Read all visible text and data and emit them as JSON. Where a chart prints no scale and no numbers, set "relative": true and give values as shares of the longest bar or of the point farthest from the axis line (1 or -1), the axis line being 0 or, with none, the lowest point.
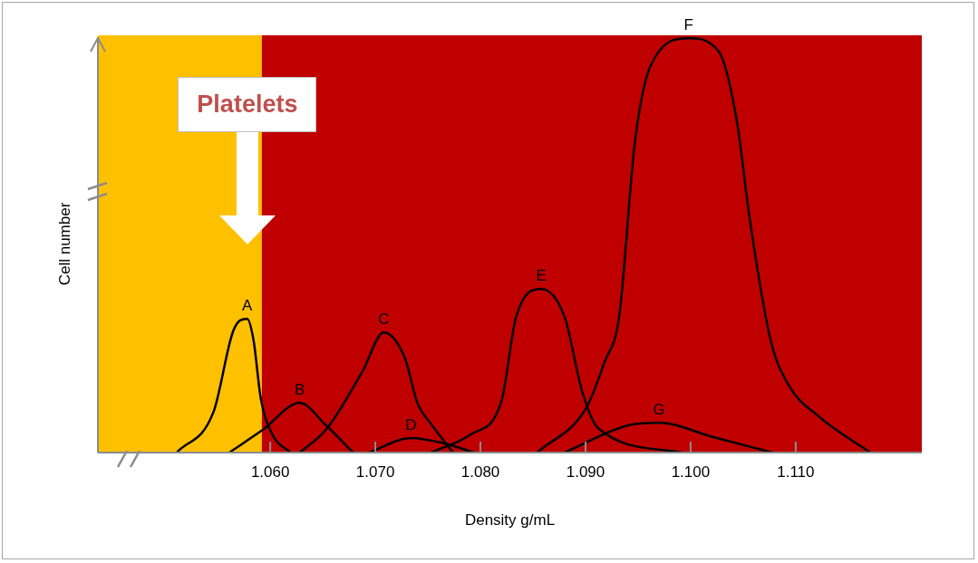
{
  "chart_data": {
    "type": "line",
    "relative": true,
    "xlabel": "Density g/mL",
    "ylabel": "Cell number",
    "xlim": [
      1.0436,
      1.122
    ],
    "xticks": [
      {
        "value": 1.06,
        "label": "1.060"
      },
      {
        "value": 1.07,
        "label": "1.070"
      },
      {
        "value": 1.08,
        "label": "1.080"
      },
      {
        "value": 1.09,
        "label": "1.090"
      },
      {
        "value": 1.1,
        "label": "1.100"
      },
      {
        "value": 1.11,
        "label": "1.110"
      }
    ],
    "bands": [
      {
        "axis": "x",
        "from": 1.0436,
        "to": 1.0592,
        "label": "Platelets",
        "color": "#ffc000"
      },
      {
        "axis": "x",
        "from": 1.0592,
        "to": 1.122,
        "color": "#c00000"
      }
    ],
    "marker": "none",
    "line_style": "solid",
    "legend": false,
    "series": [
      {
        "name": "A",
        "color": "#000000",
        "x": [
          1.0511,
          1.0546,
          1.0565,
          1.0578,
          1.0584,
          1.0591,
          1.0602,
          1.0619
        ],
        "values": [
          0,
          0.098,
          0.295,
          0.323,
          0.273,
          0.131,
          0.044,
          0
        ]
      },
      {
        "name": "B",
        "color": "#000000",
        "x": [
          1.0561,
          1.0593,
          1.0628,
          1.0653,
          1.0679
        ],
        "values": [
          0,
          0.055,
          0.12,
          0.066,
          0
        ]
      },
      {
        "name": "C",
        "color": "#000000",
        "x": [
          1.0628,
          1.0653,
          1.0688,
          1.0708,
          1.0728,
          1.074,
          1.0754,
          1.0774
        ],
        "values": [
          0,
          0.055,
          0.197,
          0.29,
          0.229,
          0.12,
          0.066,
          0
        ]
      },
      {
        "name": "D",
        "color": "#000000",
        "x": [
          1.0694,
          1.0734,
          1.0766,
          1.0794
        ],
        "values": [
          0,
          0.035,
          0.022,
          0
        ]
      },
      {
        "name": "E",
        "color": "#000000",
        "x": [
          1.0753,
          1.0791,
          1.082,
          1.0834,
          1.0858,
          1.088,
          1.0897,
          1.0912,
          1.0992
        ],
        "values": [
          0,
          0.044,
          0.124,
          0.328,
          0.395,
          0.328,
          0.146,
          0.059,
          0
        ]
      },
      {
        "name": "F",
        "color": "#000000",
        "x": [
          1.0854,
          1.0901,
          1.0918,
          1.0932,
          1.0947,
          1.0962,
          1.0998,
          1.1027,
          1.1044,
          1.1056,
          1.1076,
          1.1093,
          1.1122,
          1.1171
        ],
        "values": [
          0,
          0.109,
          0.218,
          0.328,
          0.749,
          0.934,
          1,
          0.967,
          0.8,
          0.568,
          0.273,
          0.164,
          0.087,
          0
        ]
      },
      {
        "name": "G",
        "color": "#000000",
        "x": [
          1.088,
          1.0941,
          1.097,
          1.1022,
          1.1078
        ],
        "values": [
          0,
          0.066,
          0.072,
          0.037,
          0
        ]
      }
    ]
  }
}
